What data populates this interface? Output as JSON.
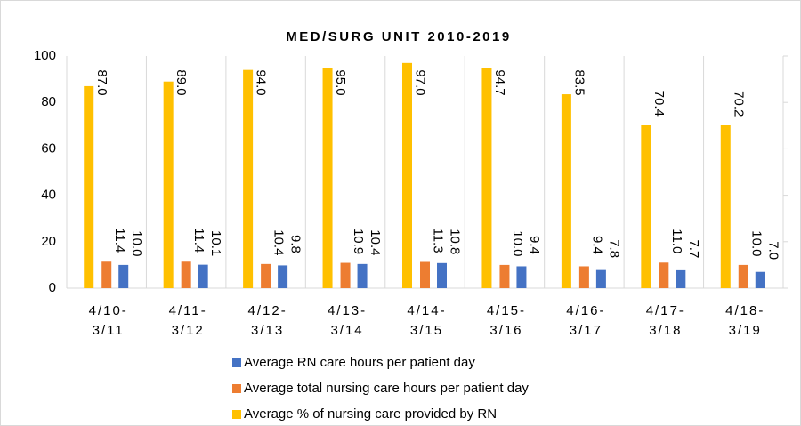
{
  "chart_data": {
    "type": "bar",
    "title": "MED/SURG UNIT 2010-2019",
    "categories": [
      [
        "4/10-",
        "3/11"
      ],
      [
        "4/11-",
        "3/12"
      ],
      [
        "4/12-",
        "3/13"
      ],
      [
        "4/13-",
        "3/14"
      ],
      [
        "4/14-",
        "3/15"
      ],
      [
        "4/15-",
        "3/16"
      ],
      [
        "4/16-",
        "3/17"
      ],
      [
        "4/17-",
        "3/18"
      ],
      [
        "4/18-",
        "3/19"
      ]
    ],
    "series": [
      {
        "name": "Average % of nursing care provided by RN",
        "color": "#ffc000",
        "values": [
          87,
          89,
          94,
          95,
          97,
          94.7,
          83.5,
          70.4,
          70.2
        ],
        "value_labels": [
          "87.0",
          "89.0",
          "94.0",
          "95.0",
          "97.0",
          "94.7",
          "83.5",
          "70.4",
          "70.2"
        ]
      },
      {
        "name": "Average total nursing care hours per patient day",
        "color": "#ed7d31",
        "values": [
          11.4,
          11.4,
          10.4,
          10.9,
          11.3,
          10,
          9.4,
          11,
          10
        ],
        "value_labels": [
          "11.4",
          "11.4",
          "10.4",
          "10.9",
          "11.3",
          "10.0",
          "9.4",
          "11.0",
          "10.0"
        ]
      },
      {
        "name": "Average RN care hours per patient day",
        "color": "#4472c4",
        "values": [
          10,
          10.1,
          9.8,
          10.4,
          10.8,
          9.4,
          7.8,
          7.7,
          7
        ],
        "value_labels": [
          "10.0",
          "10.1",
          "9.8",
          "10.4",
          "10.8",
          "9.4",
          "7.8",
          "7.7",
          "7.0"
        ]
      }
    ],
    "ylim": [
      0,
      100
    ],
    "yticks": [
      0,
      20,
      40,
      60,
      80,
      100
    ]
  }
}
